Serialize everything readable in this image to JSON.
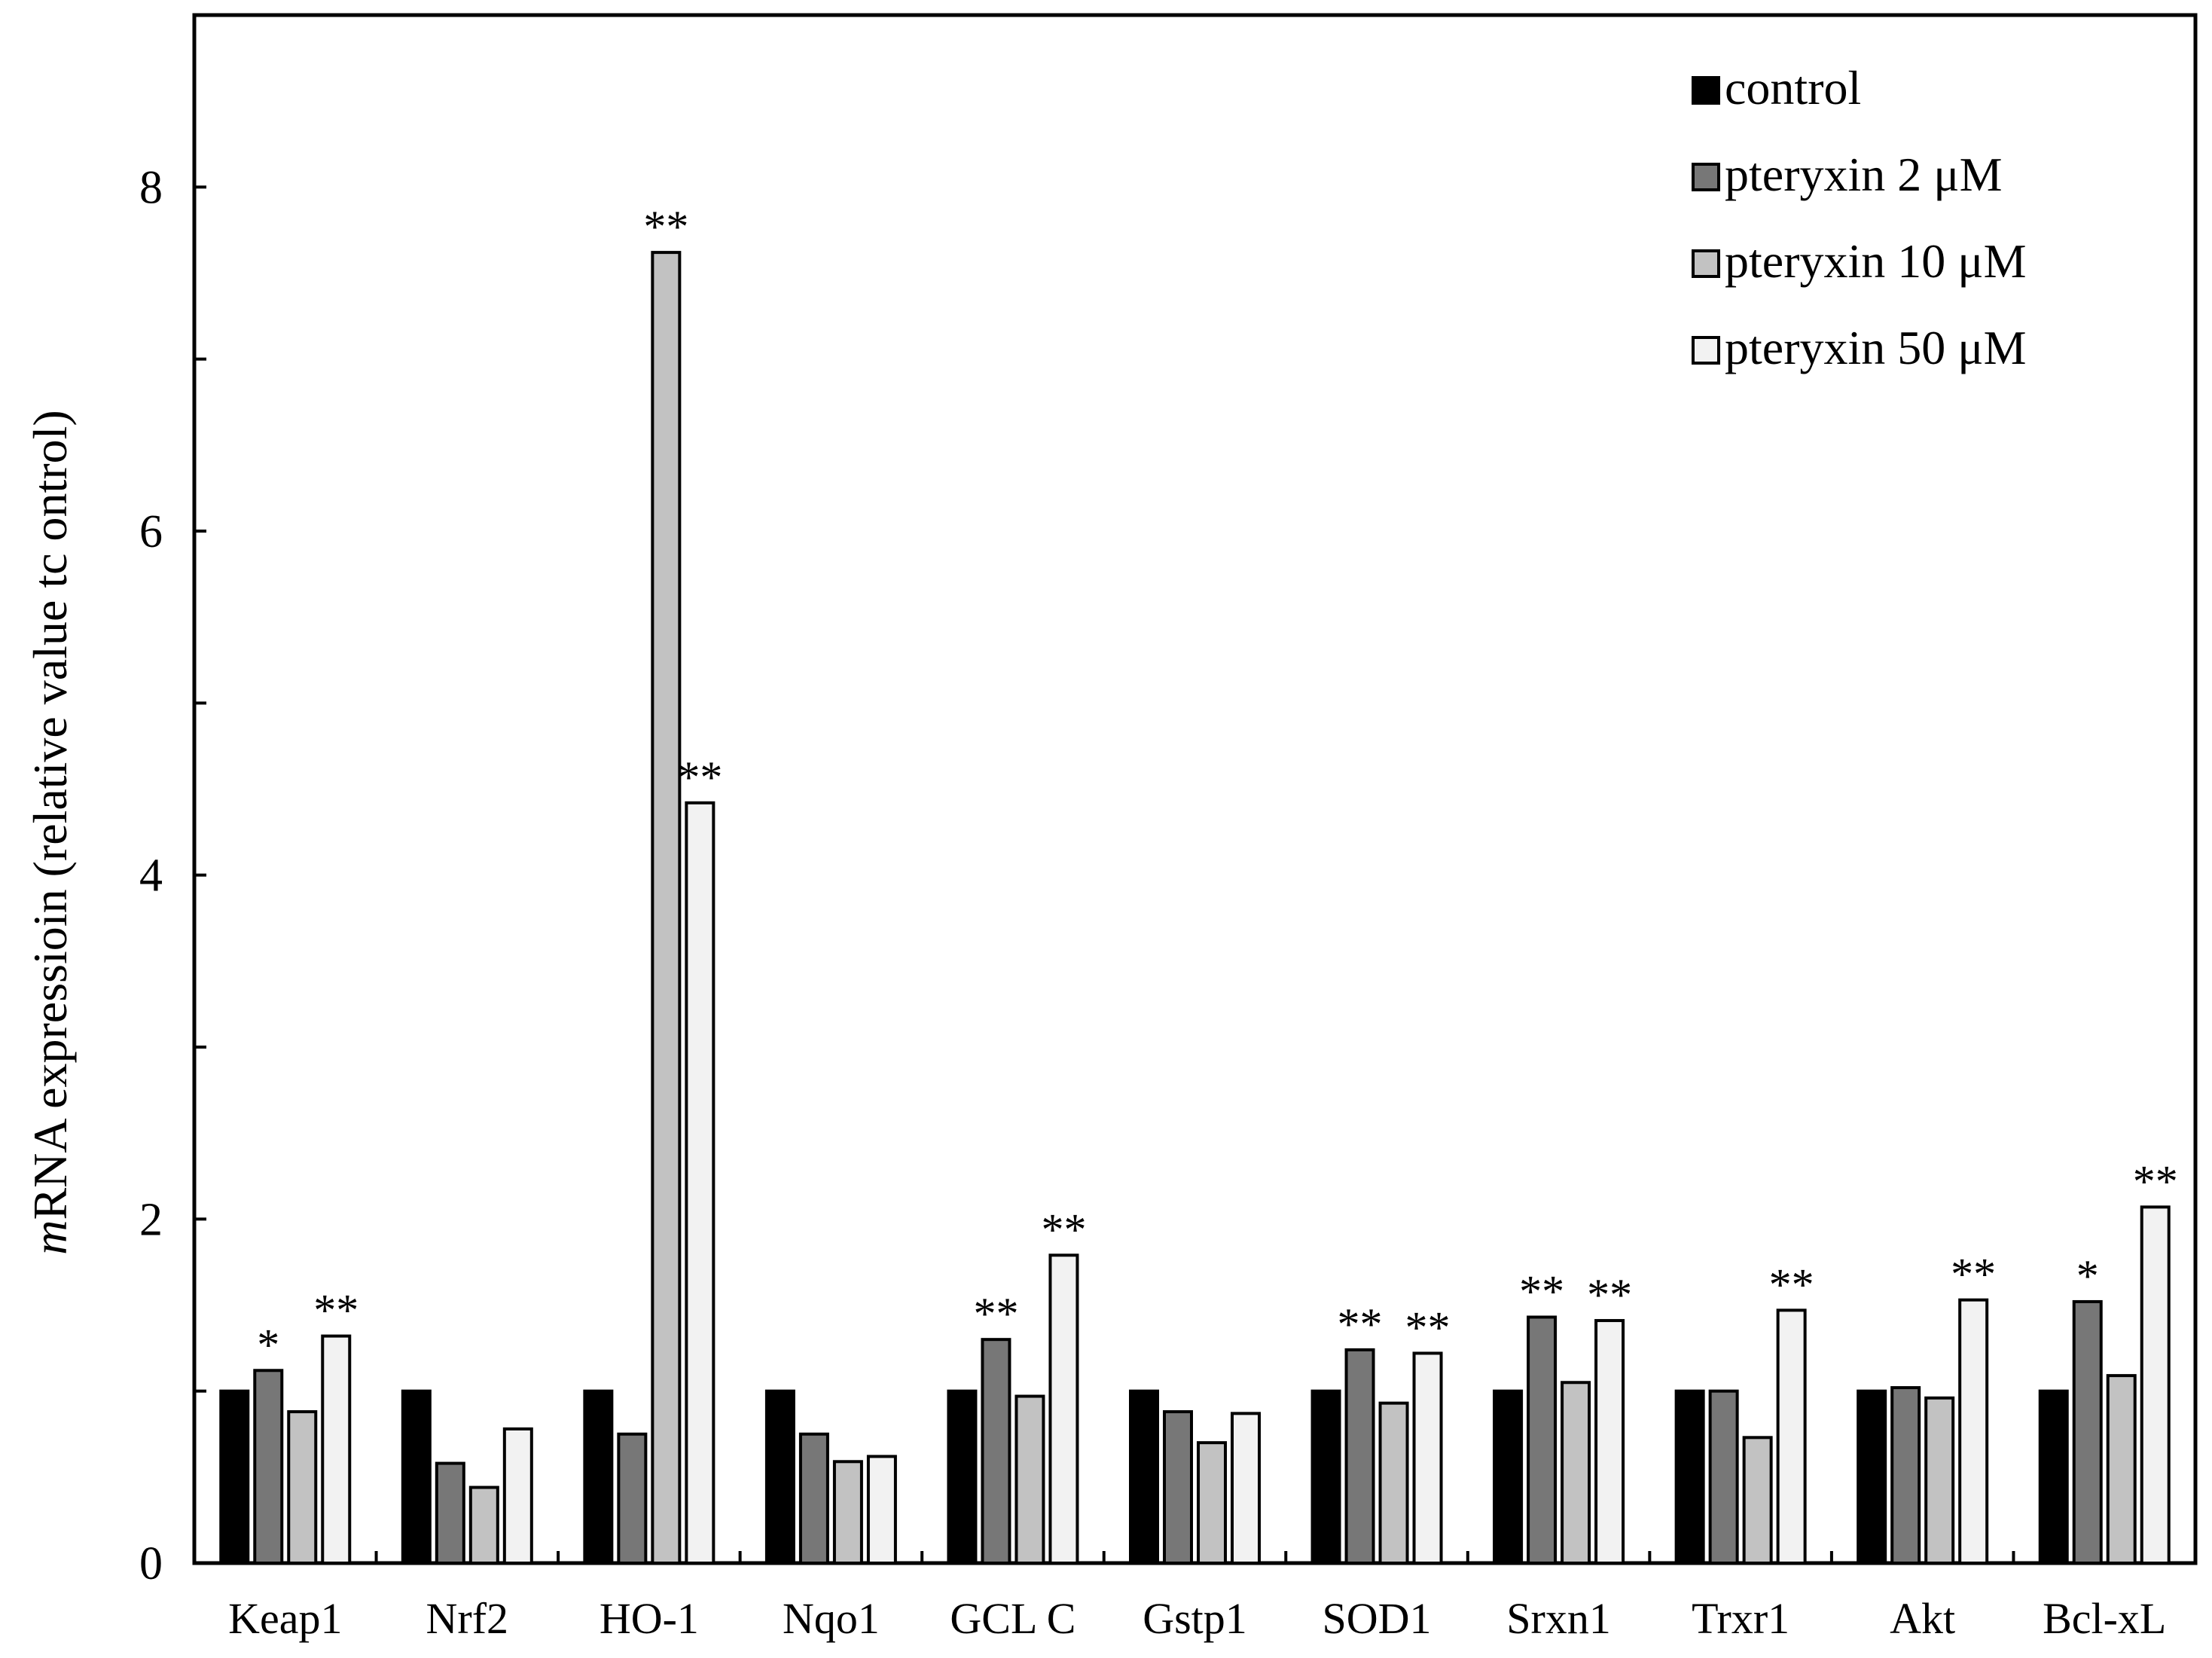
{
  "chart_data": {
    "type": "bar",
    "title": "",
    "xlabel": "",
    "ylabel_italic": "m",
    "ylabel_rest": "RNA expressioin  (relative  value tc ontrol)",
    "ylim": [
      0,
      9
    ],
    "yticks": [
      0,
      2,
      4,
      6,
      8
    ],
    "yminor_ticks": [
      1,
      3,
      5,
      7
    ],
    "categories": [
      "Keap1",
      "Nrf2",
      "HO-1",
      "Nqo1",
      "GCL C",
      "Gstp1",
      "SOD1",
      "Srxn1",
      "Trxr1",
      "Akt",
      "Bcl-xL"
    ],
    "legend_position": "top-right",
    "series": [
      {
        "name": "control",
        "color": "#000000",
        "values": [
          1.0,
          1.0,
          1.0,
          1.0,
          1.0,
          1.0,
          1.0,
          1.0,
          1.0,
          1.0,
          1.0
        ],
        "significance": [
          "",
          "",
          "",
          "",
          "",
          "",
          "",
          "",
          "",
          "",
          ""
        ]
      },
      {
        "name": "pteryxin 2 μM",
        "color": "#777777",
        "values": [
          1.12,
          0.58,
          0.75,
          0.75,
          1.3,
          0.88,
          1.24,
          1.43,
          1.0,
          1.02,
          1.52
        ],
        "significance": [
          "*",
          "",
          "",
          "",
          "**",
          "",
          "**",
          "**",
          "",
          "",
          "*"
        ]
      },
      {
        "name": "pteryxin 10 μM",
        "color": "#c2c2c2",
        "values": [
          0.88,
          0.44,
          7.62,
          0.59,
          0.97,
          0.7,
          0.93,
          1.05,
          0.73,
          0.96,
          1.09
        ],
        "significance": [
          "",
          "",
          "**",
          "",
          "",
          "",
          "",
          "",
          "",
          "",
          ""
        ]
      },
      {
        "name": "pteryxin 50 μM",
        "color": "#f2f2f2",
        "values": [
          1.32,
          0.78,
          4.42,
          0.62,
          1.79,
          0.87,
          1.22,
          1.41,
          1.47,
          1.53,
          2.07
        ],
        "significance": [
          "**",
          "",
          "**",
          "",
          "**",
          "",
          "**",
          "**",
          "**",
          "**",
          "**"
        ]
      }
    ]
  }
}
